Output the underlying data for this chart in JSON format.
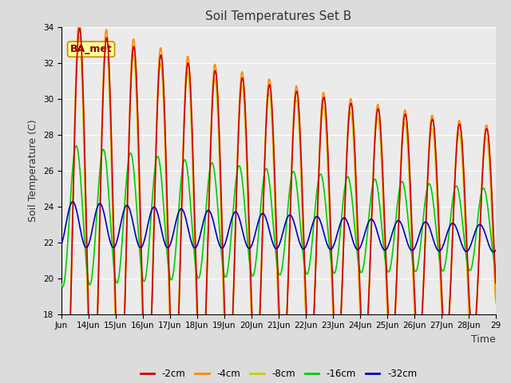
{
  "title": "Soil Temperatures Set B",
  "xlabel": "Time",
  "ylabel": "Soil Temperature (C)",
  "ylim": [
    18,
    34
  ],
  "legend_labels": [
    "-2cm",
    "-4cm",
    "-8cm",
    "-16cm",
    "-32cm"
  ],
  "line_colors": [
    "#cc0000",
    "#ff8800",
    "#cccc00",
    "#00cc00",
    "#0000bb"
  ],
  "line_widths": [
    1.2,
    1.2,
    1.2,
    1.2,
    1.2
  ],
  "bg_color": "#dcdcdc",
  "plot_bg_color": "#ebebeb",
  "annotation_text": "BA_met",
  "annotation_bg": "#ffff99",
  "annotation_border": "#cc8800",
  "annotation_text_color": "#880000",
  "grid_color": "#ffffff",
  "title_fontsize": 11,
  "axis_fontsize": 9,
  "tick_fontsize": 7.5,
  "x_tick_labels": [
    "Jun",
    "14Jun",
    "15Jun",
    "16Jun",
    "17Jun",
    "18Jun",
    "19Jun",
    "20Jun",
    "21Jun",
    "22Jun",
    "23Jun",
    "24Jun",
    "25Jun",
    "26Jun",
    "27Jun",
    "28Jun",
    "29"
  ]
}
